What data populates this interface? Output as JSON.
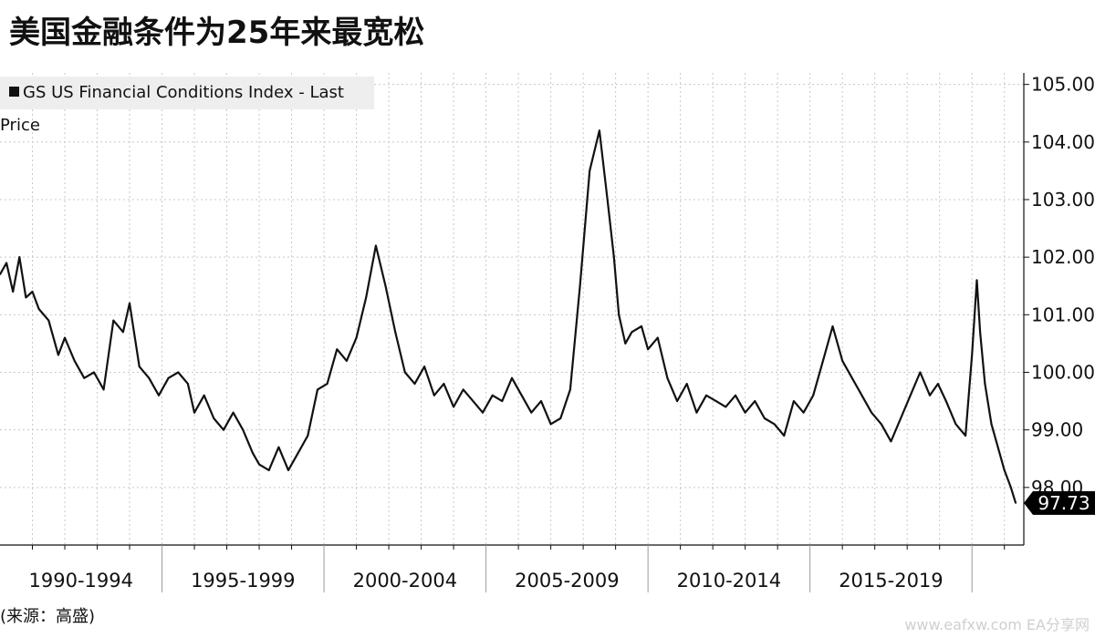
{
  "title": "美国金融条件为25年来最宽松",
  "legend_label": "GS US Financial Conditions Index - Last Price",
  "source": "(来源：高盛)",
  "watermark": "www.eafxw.com  EA分享网",
  "colors": {
    "line": "#111111",
    "grid": "#c8c8c8",
    "legend_bg": "#eeeeee",
    "last_badge": "#000000"
  },
  "chart_data": {
    "type": "line",
    "title": "美国金融条件为25年来最宽松",
    "xlabel": "",
    "ylabel": "",
    "ylim": [
      97.0,
      105.2
    ],
    "grid": "on",
    "y_axis_side": "right",
    "legend_placement": "top-left",
    "y_ticks": [
      "98.00",
      "99.00",
      "100.00",
      "101.00",
      "102.00",
      "103.00",
      "104.00",
      "105.00"
    ],
    "x_periods": [
      "1990-1994",
      "1995-1999",
      "2000-2004",
      "2005-2009",
      "2010-2014",
      "2015-2019"
    ],
    "last_value_label": "97.73",
    "series": [
      {
        "name": "GS US Financial Conditions Index - Last Price",
        "x": [
          1990.0,
          1990.2,
          1990.4,
          1990.6,
          1990.8,
          1991.0,
          1991.2,
          1991.5,
          1991.8,
          1992.0,
          1992.3,
          1992.6,
          1992.9,
          1993.2,
          1993.5,
          1993.8,
          1994.0,
          1994.3,
          1994.6,
          1994.9,
          1995.2,
          1995.5,
          1995.8,
          1996.0,
          1996.3,
          1996.6,
          1996.9,
          1997.2,
          1997.5,
          1997.8,
          1998.0,
          1998.3,
          1998.6,
          1998.9,
          1999.2,
          1999.5,
          1999.8,
          2000.1,
          2000.4,
          2000.7,
          2001.0,
          2001.3,
          2001.6,
          2001.9,
          2002.2,
          2002.5,
          2002.8,
          2003.1,
          2003.4,
          2003.7,
          2004.0,
          2004.3,
          2004.6,
          2004.9,
          2005.2,
          2005.5,
          2005.8,
          2006.1,
          2006.4,
          2006.7,
          2007.0,
          2007.3,
          2007.6,
          2007.9,
          2008.2,
          2008.5,
          2008.75,
          2008.95,
          2009.1,
          2009.3,
          2009.5,
          2009.8,
          2010.0,
          2010.3,
          2010.6,
          2010.9,
          2011.2,
          2011.5,
          2011.8,
          2012.1,
          2012.4,
          2012.7,
          2013.0,
          2013.3,
          2013.6,
          2013.9,
          2014.2,
          2014.5,
          2014.8,
          2015.1,
          2015.4,
          2015.7,
          2016.0,
          2016.3,
          2016.6,
          2016.9,
          2017.2,
          2017.5,
          2017.8,
          2018.1,
          2018.4,
          2018.7,
          2018.95,
          2019.2,
          2019.5,
          2019.8,
          2020.0,
          2020.15,
          2020.25,
          2020.4,
          2020.6,
          2020.8,
          2021.0,
          2021.2,
          2021.35
        ],
        "values": [
          101.7,
          101.9,
          101.4,
          102.0,
          101.3,
          101.4,
          101.1,
          100.9,
          100.3,
          100.6,
          100.2,
          99.9,
          100.0,
          99.7,
          100.9,
          100.7,
          101.2,
          100.1,
          99.9,
          99.6,
          99.9,
          100.0,
          99.8,
          99.3,
          99.6,
          99.2,
          99.0,
          99.3,
          99.0,
          98.6,
          98.4,
          98.3,
          98.7,
          98.3,
          98.6,
          98.9,
          99.7,
          99.8,
          100.4,
          100.2,
          100.6,
          101.3,
          102.2,
          101.5,
          100.7,
          100.0,
          99.8,
          100.1,
          99.6,
          99.8,
          99.4,
          99.7,
          99.5,
          99.3,
          99.6,
          99.5,
          99.9,
          99.6,
          99.3,
          99.5,
          99.1,
          99.2,
          99.7,
          101.5,
          103.5,
          104.2,
          103.0,
          102.0,
          101.0,
          100.5,
          100.7,
          100.8,
          100.4,
          100.6,
          99.9,
          99.5,
          99.8,
          99.3,
          99.6,
          99.5,
          99.4,
          99.6,
          99.3,
          99.5,
          99.2,
          99.1,
          98.9,
          99.5,
          99.3,
          99.6,
          100.2,
          100.8,
          100.2,
          99.9,
          99.6,
          99.3,
          99.1,
          98.8,
          99.2,
          99.6,
          100.0,
          99.6,
          99.8,
          99.5,
          99.1,
          98.9,
          100.3,
          101.6,
          100.7,
          99.8,
          99.1,
          98.7,
          98.3,
          98.0,
          97.73
        ]
      }
    ]
  }
}
